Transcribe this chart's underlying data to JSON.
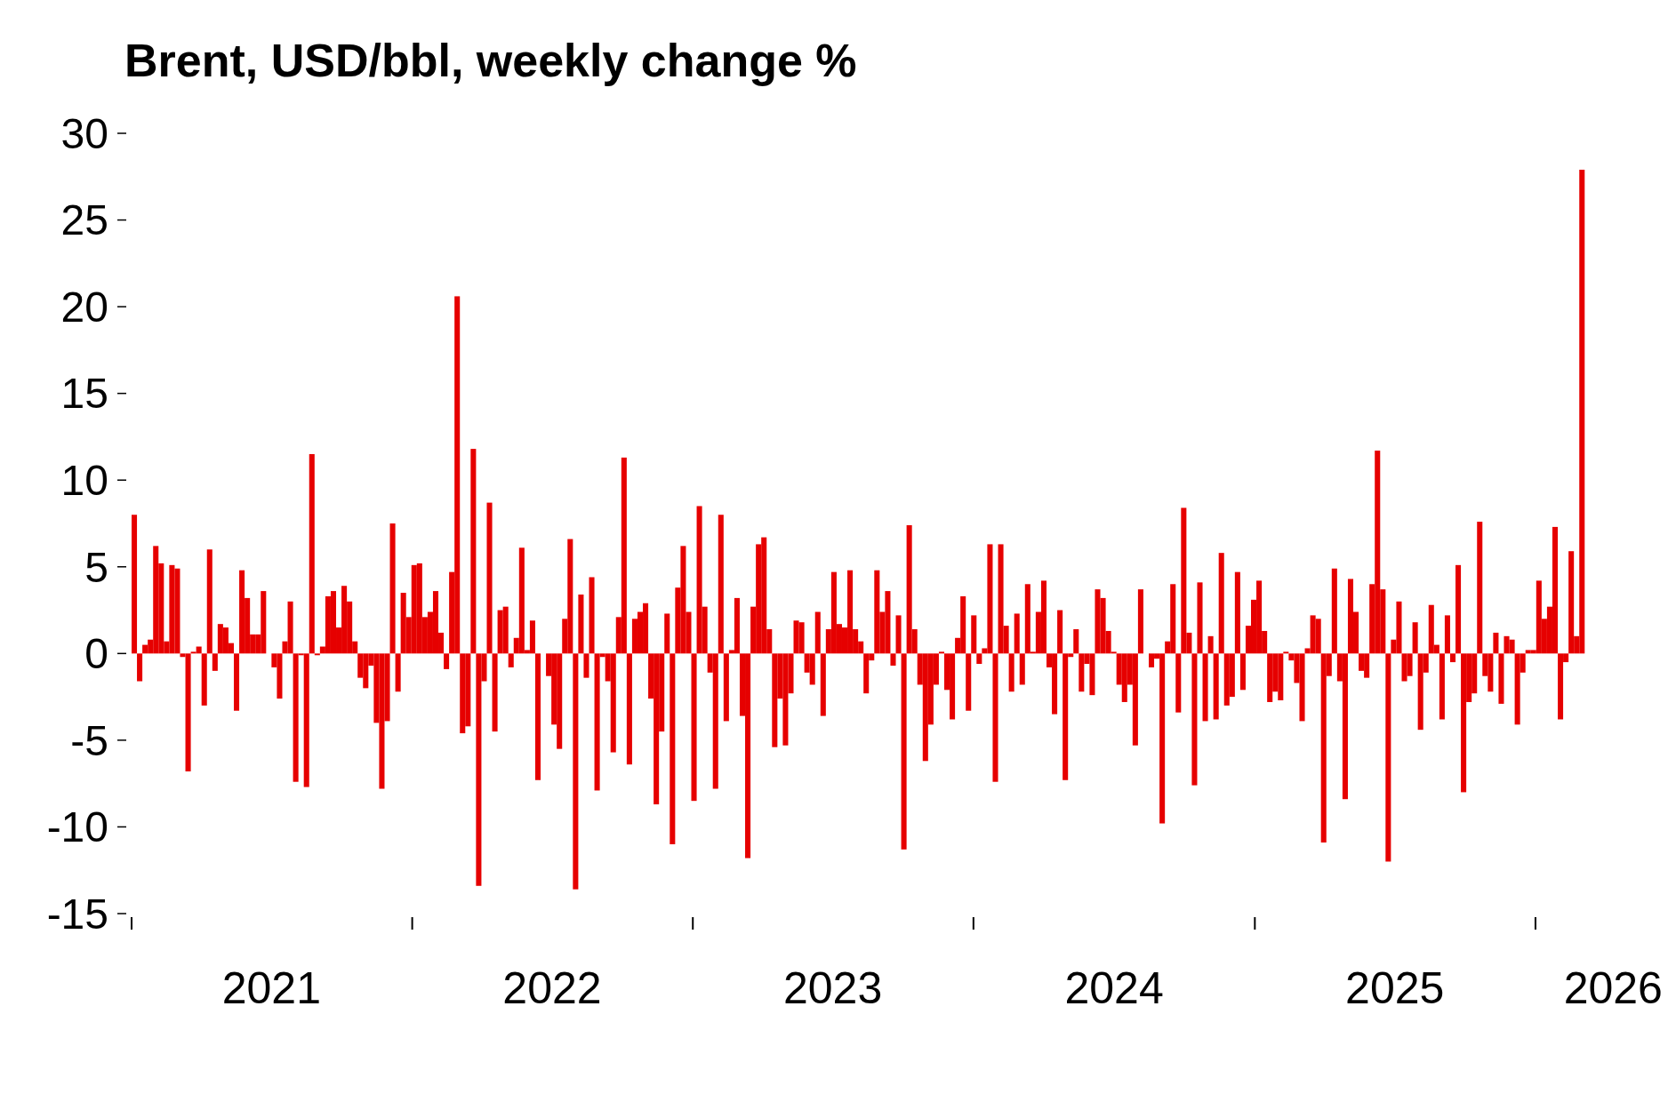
{
  "chart_data": {
    "type": "bar",
    "title": "Brent, USD/bbl, weekly change %",
    "color": "#e60000",
    "x": [
      "2021-01-08",
      "2021-01-15",
      "2021-01-22",
      "2021-01-29",
      "2021-02-05",
      "2021-02-12",
      "2021-02-19",
      "2021-02-26",
      "2021-03-05",
      "2021-03-12",
      "2021-03-19",
      "2021-03-26",
      "2021-04-02",
      "2021-04-09",
      "2021-04-16",
      "2021-04-23",
      "2021-04-30",
      "2021-05-07",
      "2021-05-14",
      "2021-05-21",
      "2021-05-28",
      "2021-06-04",
      "2021-06-11",
      "2021-06-18",
      "2021-06-25",
      "2021-07-02",
      "2021-07-09",
      "2021-07-16",
      "2021-07-23",
      "2021-07-30",
      "2021-08-06",
      "2021-08-13",
      "2021-08-20",
      "2021-08-27",
      "2021-09-03",
      "2021-09-10",
      "2021-09-17",
      "2021-09-24",
      "2021-10-01",
      "2021-10-08",
      "2021-10-15",
      "2021-10-22",
      "2021-10-29",
      "2021-11-05",
      "2021-11-12",
      "2021-11-19",
      "2021-11-26",
      "2021-12-03",
      "2021-12-10",
      "2021-12-17",
      "2021-12-24",
      "2021-12-31",
      "2022-01-07",
      "2022-01-14",
      "2022-01-21",
      "2022-01-28",
      "2022-02-04",
      "2022-02-11",
      "2022-02-18",
      "2022-02-25",
      "2022-03-04",
      "2022-03-11",
      "2022-03-18",
      "2022-03-25",
      "2022-04-01",
      "2022-04-08",
      "2022-04-15",
      "2022-04-22",
      "2022-04-29",
      "2022-05-06",
      "2022-05-13",
      "2022-05-20",
      "2022-05-27",
      "2022-06-03",
      "2022-06-10",
      "2022-06-17",
      "2022-06-24",
      "2022-07-01",
      "2022-07-08",
      "2022-07-15",
      "2022-07-22",
      "2022-07-29",
      "2022-08-05",
      "2022-08-12",
      "2022-08-19",
      "2022-08-26",
      "2022-09-02",
      "2022-09-09",
      "2022-09-16",
      "2022-09-23",
      "2022-09-30",
      "2022-10-07",
      "2022-10-14",
      "2022-10-21",
      "2022-10-28",
      "2022-11-04",
      "2022-11-11",
      "2022-11-18",
      "2022-11-25",
      "2022-12-02",
      "2022-12-09",
      "2022-12-16",
      "2022-12-23",
      "2022-12-30",
      "2023-01-06",
      "2023-01-13",
      "2023-01-20",
      "2023-01-27",
      "2023-02-03",
      "2023-02-10",
      "2023-02-17",
      "2023-02-24",
      "2023-03-03",
      "2023-03-10",
      "2023-03-17",
      "2023-03-24",
      "2023-03-31",
      "2023-04-07",
      "2023-04-14",
      "2023-04-21",
      "2023-04-28",
      "2023-05-05",
      "2023-05-12",
      "2023-05-19",
      "2023-05-26",
      "2023-06-02",
      "2023-06-09",
      "2023-06-16",
      "2023-06-23",
      "2023-06-30",
      "2023-07-07",
      "2023-07-14",
      "2023-07-21",
      "2023-07-28",
      "2023-08-04",
      "2023-08-11",
      "2023-08-18",
      "2023-08-25",
      "2023-09-01",
      "2023-09-08",
      "2023-09-15",
      "2023-09-22",
      "2023-09-29",
      "2023-10-06",
      "2023-10-13",
      "2023-10-20",
      "2023-10-27",
      "2023-11-03",
      "2023-11-10",
      "2023-11-17",
      "2023-11-24",
      "2023-12-01",
      "2023-12-08",
      "2023-12-15",
      "2023-12-22",
      "2023-12-29",
      "2024-01-05",
      "2024-01-12",
      "2024-01-19",
      "2024-01-26",
      "2024-02-02",
      "2024-02-09",
      "2024-02-16",
      "2024-02-23",
      "2024-03-01",
      "2024-03-08",
      "2024-03-15",
      "2024-03-22",
      "2024-03-29",
      "2024-04-05",
      "2024-04-12",
      "2024-04-19",
      "2024-04-26",
      "2024-05-03",
      "2024-05-10",
      "2024-05-17",
      "2024-05-24",
      "2024-05-31",
      "2024-06-07",
      "2024-06-14",
      "2024-06-21",
      "2024-06-28",
      "2024-07-05",
      "2024-07-12",
      "2024-07-19",
      "2024-07-26",
      "2024-08-02",
      "2024-08-09",
      "2024-08-16",
      "2024-08-23",
      "2024-08-30",
      "2024-09-06",
      "2024-09-13",
      "2024-09-20",
      "2024-09-27",
      "2024-10-04",
      "2024-10-11",
      "2024-10-18",
      "2024-10-25",
      "2024-11-01",
      "2024-11-08",
      "2024-11-15",
      "2024-11-22",
      "2024-11-29",
      "2024-12-06",
      "2024-12-13",
      "2024-12-20",
      "2024-12-27",
      "2025-01-03",
      "2025-01-10",
      "2025-01-17",
      "2025-01-24",
      "2025-01-31",
      "2025-02-07",
      "2025-02-14",
      "2025-02-21",
      "2025-02-28",
      "2025-03-07",
      "2025-03-14",
      "2025-03-21",
      "2025-03-28",
      "2025-04-04",
      "2025-04-11",
      "2025-04-18",
      "2025-04-25",
      "2025-05-02",
      "2025-05-09",
      "2025-05-16",
      "2025-05-23",
      "2025-05-30",
      "2025-06-06",
      "2025-06-13",
      "2025-06-20",
      "2025-06-27",
      "2025-07-04",
      "2025-07-11",
      "2025-07-18",
      "2025-07-25",
      "2025-08-01",
      "2025-08-08",
      "2025-08-15",
      "2025-08-22",
      "2025-08-29",
      "2025-09-05",
      "2025-09-12",
      "2025-09-19",
      "2025-09-26",
      "2025-10-03",
      "2025-10-10",
      "2025-10-17",
      "2025-10-24",
      "2025-10-31",
      "2025-11-07",
      "2025-11-14",
      "2025-11-21",
      "2025-11-28",
      "2025-12-05",
      "2025-12-12",
      "2025-12-19",
      "2025-12-26",
      "2026-01-02",
      "2026-01-09",
      "2026-01-16",
      "2026-01-23",
      "2026-01-30",
      "2026-02-06",
      "2026-02-13",
      "2026-02-20",
      "2026-02-27",
      "2026-03-06"
    ],
    "values": [
      8.0,
      -1.6,
      0.5,
      0.8,
      6.2,
      5.2,
      0.7,
      5.1,
      4.9,
      -0.2,
      -6.8,
      0.1,
      0.4,
      -3.0,
      6.0,
      -1.0,
      1.7,
      1.5,
      0.6,
      -3.3,
      4.8,
      3.2,
      1.1,
      1.1,
      3.6,
      0,
      -0.8,
      -2.6,
      0.7,
      3.0,
      -7.4,
      -0.1,
      -7.7,
      11.5,
      -0.1,
      0.4,
      3.3,
      3.6,
      1.5,
      3.9,
      3.0,
      0.7,
      -1.4,
      -2.0,
      -0.7,
      -4.0,
      -7.8,
      -3.9,
      7.5,
      -2.2,
      3.5,
      2.1,
      5.1,
      5.2,
      2.1,
      2.4,
      3.6,
      1.2,
      -0.9,
      4.7,
      20.6,
      -4.6,
      -4.2,
      11.8,
      -13.4,
      -1.6,
      8.7,
      -4.5,
      2.5,
      2.7,
      -0.8,
      0.9,
      6.1,
      0.2,
      1.9,
      -7.3,
      0,
      -1.3,
      -4.1,
      -5.5,
      2.0,
      6.6,
      -13.6,
      3.4,
      -1.4,
      4.4,
      -7.9,
      -0.2,
      -1.6,
      -5.7,
      2.1,
      11.3,
      -6.4,
      2.0,
      2.4,
      2.9,
      -2.6,
      -8.7,
      -4.5,
      2.3,
      -11.0,
      3.8,
      6.2,
      2.4,
      -8.5,
      8.5,
      2.7,
      -1.1,
      -7.8,
      8.0,
      -3.9,
      0.2,
      3.2,
      -3.6,
      -11.8,
      2.7,
      6.3,
      6.7,
      1.4,
      -5.4,
      -2.6,
      -5.3,
      -2.3,
      1.9,
      1.8,
      -1.1,
      -1.8,
      2.4,
      -3.6,
      1.4,
      4.7,
      1.7,
      1.5,
      4.8,
      1.4,
      0.7,
      -2.3,
      -0.4,
      4.8,
      2.4,
      3.6,
      -0.7,
      2.2,
      -11.3,
      7.4,
      1.4,
      -1.8,
      -6.2,
      -4.1,
      -1.8,
      0.1,
      -2.1,
      -3.8,
      0.9,
      3.3,
      -3.3,
      2.2,
      -0.6,
      0.3,
      6.3,
      -7.4,
      6.3,
      1.6,
      -2.2,
      2.3,
      -1.8,
      4.0,
      0.1,
      2.4,
      4.2,
      -0.8,
      -3.5,
      2.5,
      -7.3,
      -0.2,
      1.4,
      -2.2,
      -0.6,
      -2.4,
      3.7,
      3.2,
      1.3,
      0.1,
      -1.8,
      -2.8,
      -1.8,
      -5.3,
      3.7,
      0,
      -0.8,
      -0.3,
      -9.8,
      0.7,
      4.0,
      -3.4,
      8.4,
      1.2,
      -7.6,
      4.1,
      -3.9,
      1.0,
      -3.8,
      5.8,
      -3.0,
      -2.5,
      4.7,
      -2.1,
      1.6,
      3.1,
      4.2,
      1.3,
      -2.8,
      -2.2,
      -2.7,
      0.1,
      -0.4,
      -1.7,
      -3.9,
      0.3,
      2.2,
      2.0,
      -10.9,
      -1.3,
      4.9,
      -1.6,
      -8.4,
      4.3,
      2.4,
      -1.0,
      -1.4,
      4.0,
      11.7,
      3.7,
      -12.0,
      0.8,
      3.0,
      -1.6,
      -1.3,
      1.8,
      -4.4,
      -1.1,
      2.8,
      0.5,
      -3.8,
      2.2,
      -0.5,
      5.1,
      -8.0,
      -2.8,
      -2.3,
      7.6,
      -1.3,
      -2.2,
      1.2,
      -2.9,
      1.0,
      0.8,
      -4.1,
      -1.1,
      0.2,
      0.2,
      4.2,
      2.0,
      2.7,
      7.3,
      -3.8,
      -0.5,
      5.9,
      1.0,
      27.9
    ],
    "xlim": [
      "2021-01-01",
      "2026-04-12"
    ],
    "xticks": [
      {
        "value": "2021-01-01",
        "label": null
      },
      {
        "value": "2022-01-01",
        "label": null
      },
      {
        "value": "2023-01-01",
        "label": null
      },
      {
        "value": "2024-01-01",
        "label": null
      },
      {
        "value": "2025-01-01",
        "label": null
      },
      {
        "value": "2026-01-01",
        "label": null
      },
      {
        "value": "2021-07-02",
        "label": "2021"
      },
      {
        "value": "2022-07-02",
        "label": "2022"
      },
      {
        "value": "2023-07-02",
        "label": "2023"
      },
      {
        "value": "2024-07-02",
        "label": "2024"
      },
      {
        "value": "2025-07-02",
        "label": "2025"
      },
      {
        "value": "2026-04-12",
        "label": "2026"
      }
    ],
    "ylim": [
      -15,
      30
    ],
    "yticks": [
      -15,
      -10,
      -5,
      0,
      5,
      10,
      15,
      20,
      25,
      30
    ],
    "grid": false
  }
}
